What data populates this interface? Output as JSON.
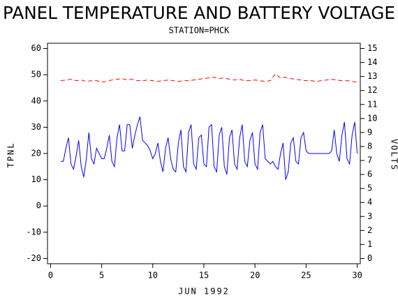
{
  "chart_data": {
    "type": "line",
    "title": "PANEL TEMPERATURE AND BATTERY VOLTAGE",
    "subtitle": "STATION=PHCK",
    "x_label": "JUN 1992",
    "y_label": "TPNL",
    "y2_label": "VOLTS",
    "xlim": [
      -0.3,
      30.3
    ],
    "xticks": [
      0,
      5,
      10,
      15,
      20,
      25,
      30
    ],
    "ylim": [
      -22,
      62
    ],
    "yticks": [
      -20,
      -10,
      0,
      10,
      20,
      30,
      40,
      50,
      60
    ],
    "y2lim": [
      -0.375,
      15.375
    ],
    "y2ticks": [
      0,
      1,
      2,
      3,
      4,
      5,
      6,
      7,
      8,
      9,
      10,
      11,
      12,
      13,
      14,
      15
    ],
    "grid": false,
    "series": [
      {
        "color": "#0000ff",
        "dashed": false,
        "x": [
          1,
          1.25,
          1.5,
          1.75,
          2,
          2.25,
          2.5,
          2.75,
          3,
          3.25,
          3.5,
          3.75,
          4,
          4.25,
          4.5,
          4.75,
          5,
          5.25,
          5.5,
          5.75,
          6,
          6.25,
          6.5,
          6.75,
          7,
          7.25,
          7.5,
          7.75,
          8,
          8.25,
          8.5,
          8.75,
          9,
          9.25,
          9.5,
          9.75,
          10,
          10.25,
          10.5,
          10.75,
          11,
          11.25,
          11.5,
          11.75,
          12,
          12.25,
          12.5,
          12.75,
          13,
          13.25,
          13.5,
          13.75,
          14,
          14.25,
          14.5,
          14.75,
          15,
          15.25,
          15.5,
          15.75,
          16,
          16.25,
          16.5,
          16.75,
          17,
          17.25,
          17.5,
          17.75,
          18,
          18.25,
          18.5,
          18.75,
          19,
          19.25,
          19.5,
          19.75,
          20,
          20.25,
          20.5,
          20.75,
          21,
          21.25,
          21.5,
          21.75,
          22,
          22.25,
          22.5,
          22.75,
          23,
          23.25,
          23.5,
          23.75,
          24,
          24.25,
          24.5,
          24.75,
          25,
          25.25,
          25.5,
          25.75,
          26,
          26.25,
          26.5,
          26.75,
          27,
          27.25,
          27.5,
          27.75,
          28,
          28.25,
          28.5,
          28.75,
          29,
          29.25,
          29.5,
          29.75,
          30
        ],
        "values": [
          17,
          17,
          22,
          26,
          16,
          14,
          19,
          25,
          15,
          11,
          18,
          28,
          18,
          16,
          22,
          20,
          18,
          18,
          22,
          27,
          17,
          15,
          26,
          31,
          21,
          21,
          31,
          31,
          22,
          27,
          31,
          34,
          25,
          24,
          23,
          21,
          18,
          20,
          24,
          17,
          13,
          22,
          26,
          18,
          14,
          13,
          24,
          29,
          15,
          13,
          28,
          31,
          16,
          14,
          26,
          27,
          16,
          15,
          30,
          31,
          15,
          13,
          27,
          30,
          15,
          12,
          26,
          29,
          16,
          14,
          26,
          31,
          17,
          15,
          25,
          28,
          16,
          14,
          28,
          31,
          18,
          17,
          16,
          17,
          15,
          14,
          20,
          24,
          10,
          13,
          24,
          26,
          17,
          16,
          26,
          28,
          21,
          20,
          20,
          20,
          20,
          20,
          20,
          20,
          20,
          20,
          21,
          29,
          20,
          17,
          27,
          32,
          18,
          16,
          27,
          32,
          20
        ]
      },
      {
        "color": "#ff0000",
        "dashed": true,
        "axis": "y2",
        "x": [
          1,
          1.5,
          2,
          2.5,
          3,
          3.5,
          4,
          4.5,
          5,
          5.5,
          6,
          6.5,
          7,
          7.5,
          8,
          8.5,
          9,
          9.5,
          10,
          10.5,
          11,
          11.5,
          12,
          12.5,
          13,
          13.5,
          14,
          14.5,
          15,
          15.5,
          16,
          16.5,
          17,
          17.5,
          18,
          18.5,
          19,
          19.5,
          20,
          20.5,
          21,
          21.5,
          22,
          22.5,
          23,
          23.5,
          24,
          24.5,
          25,
          25.5,
          26,
          26.5,
          27,
          27.5,
          28,
          28.5,
          29,
          29.5,
          30
        ],
        "values": [
          12.7,
          12.75,
          12.8,
          12.7,
          12.75,
          12.65,
          12.7,
          12.7,
          12.6,
          12.65,
          12.75,
          12.8,
          12.85,
          12.75,
          12.8,
          12.7,
          12.7,
          12.75,
          12.7,
          12.65,
          12.7,
          12.75,
          12.7,
          12.65,
          12.7,
          12.7,
          12.75,
          12.8,
          12.85,
          12.9,
          12.95,
          12.85,
          12.9,
          12.8,
          12.75,
          12.8,
          12.7,
          12.7,
          12.75,
          12.7,
          12.65,
          12.7,
          13.2,
          12.9,
          12.95,
          12.85,
          12.8,
          12.75,
          12.7,
          12.7,
          12.65,
          12.7,
          12.75,
          12.8,
          12.75,
          12.7,
          12.7,
          12.65,
          12.6
        ]
      }
    ]
  }
}
